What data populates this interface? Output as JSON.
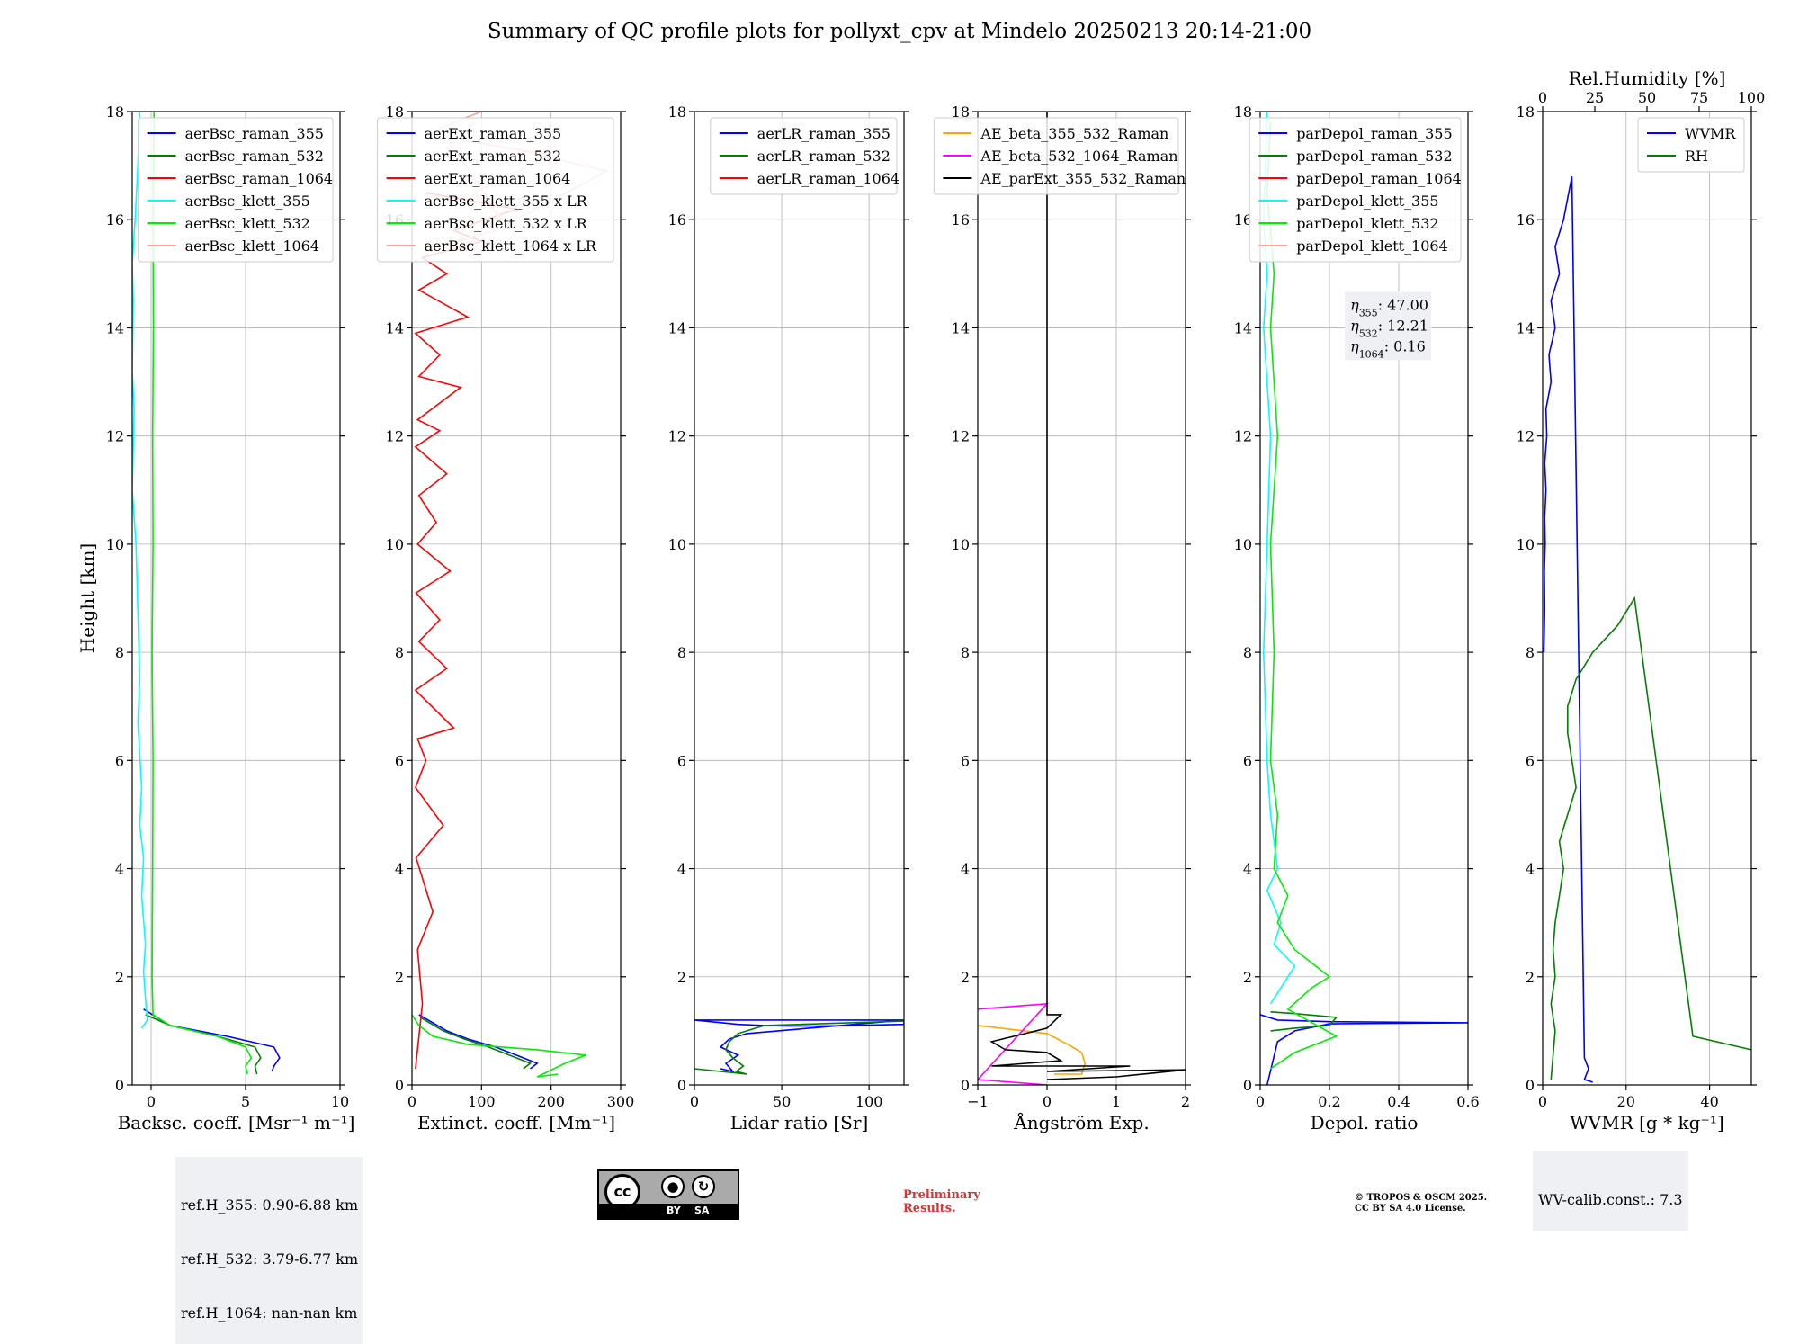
{
  "title": "Summary of QC profile plots for pollyxt_cpv at Mindelo 20250213 20:14-21:00",
  "info": {
    "ref_h_355": "ref.H_355: 0.90-6.88 km",
    "ref_h_532": "ref.H_532: 3.79-6.77 km",
    "ref_h_1064": "ref.H_1064: nan-nan km",
    "wv_calib": "WV-calib.const.: 7.3",
    "preliminary": "Preliminary\nResults.",
    "copyright": "© TROPOS & OSCM 2025.\nCC BY SA 4.0 License.",
    "cc_badge": {
      "cc": "cc",
      "by": "BY",
      "sa": "SA"
    }
  },
  "chart_data": [
    {
      "type": "line",
      "ylabel": "Height [km]",
      "xlabel": "Backsc. coeff. [Msr⁻¹ m⁻¹]",
      "xlim": [
        -1,
        10
      ],
      "ylim": [
        0,
        18
      ],
      "xticks": [
        0,
        5,
        10
      ],
      "yticks": [
        0,
        2,
        4,
        6,
        8,
        10,
        12,
        14,
        16,
        18
      ],
      "grid": true,
      "legend_position": "top-right",
      "series": [
        {
          "name": "aerBsc_raman_355",
          "color": "#0000ff",
          "x": [
            -0.4,
            1.0,
            4.0,
            6.5,
            6.8,
            6.5,
            6.4
          ],
          "y": [
            1.4,
            1.1,
            0.9,
            0.7,
            0.5,
            0.35,
            0.25
          ]
        },
        {
          "name": "aerBsc_raman_532",
          "color": "#008000",
          "x": [
            -0.3,
            1.0,
            3.5,
            5.5,
            5.8,
            5.5,
            5.6
          ],
          "y": [
            1.3,
            1.1,
            0.9,
            0.7,
            0.5,
            0.35,
            0.2
          ]
        },
        {
          "name": "aerBsc_raman_1064",
          "color": "#ff0000",
          "x": [],
          "y": []
        },
        {
          "name": "aerBsc_klett_355",
          "color": "#00ffff",
          "x": [
            -0.6,
            -0.7,
            -0.85,
            -1.0,
            -0.95,
            -1.0,
            -0.9,
            -1.0,
            -0.8,
            -0.6,
            -0.7,
            -0.5,
            -0.6,
            -0.4,
            -0.5,
            -0.3,
            -0.4,
            -0.3,
            -0.2,
            -0.5
          ],
          "y": [
            18,
            17,
            16,
            15.2,
            14.5,
            13.2,
            12.5,
            11,
            10,
            7.5,
            6.7,
            5.5,
            4.8,
            4.2,
            3.5,
            2.6,
            2.1,
            1.6,
            1.2,
            1.05
          ]
        },
        {
          "name": "aerBsc_klett_532",
          "color": "#00ee00",
          "x": [
            0.15,
            0.1,
            0.12,
            0.08,
            0.1,
            0.05,
            0.1,
            0.08,
            0.05,
            0.1,
            1.0,
            3.5,
            5.0,
            5.3,
            5.0,
            5.1
          ],
          "y": [
            18,
            16,
            14,
            12,
            10,
            8,
            6,
            4,
            2,
            1.3,
            1.1,
            0.9,
            0.7,
            0.5,
            0.35,
            0.2
          ]
        },
        {
          "name": "aerBsc_klett_1064",
          "color": "#ffa0a0",
          "x": [],
          "y": []
        }
      ]
    },
    {
      "type": "line",
      "xlabel": "Extinct. coeff. [Mm⁻¹]",
      "xlim": [
        0,
        300
      ],
      "ylim": [
        0,
        18
      ],
      "xticks": [
        0,
        100,
        200,
        300
      ],
      "yticks": [
        0,
        2,
        4,
        6,
        8,
        10,
        12,
        14,
        16,
        18
      ],
      "grid": true,
      "legend_position": "top-right",
      "series": [
        {
          "name": "aerExt_raman_355",
          "color": "#0000ff",
          "x": [
            10,
            50,
            80,
            120,
            150,
            180,
            170
          ],
          "y": [
            1.3,
            1.0,
            0.85,
            0.7,
            0.55,
            0.4,
            0.3
          ]
        },
        {
          "name": "aerExt_raman_532",
          "color": "#008000",
          "x": [
            12,
            45,
            75,
            110,
            140,
            170,
            160
          ],
          "y": [
            1.25,
            1.0,
            0.85,
            0.7,
            0.55,
            0.4,
            0.3
          ]
        },
        {
          "name": "aerExt_raman_1064",
          "color": "#ff0000",
          "x": [
            5,
            15,
            8,
            30,
            6,
            45,
            5,
            20,
            8,
            60,
            5,
            50,
            10,
            40,
            6,
            55,
            8,
            35,
            10,
            50,
            5,
            40,
            8,
            70,
            10,
            40,
            5,
            80,
            10,
            50,
            15,
            100,
            60,
            150,
            20
          ],
          "y": [
            0.3,
            1.5,
            2.5,
            3.2,
            4.2,
            4.8,
            5.5,
            6.0,
            6.4,
            6.6,
            7.3,
            7.7,
            8.2,
            8.6,
            9.1,
            9.5,
            10.0,
            10.4,
            10.9,
            11.3,
            11.8,
            12.1,
            12.3,
            12.9,
            13.1,
            13.5,
            13.9,
            14.2,
            14.7,
            15.0,
            15.3,
            15.6,
            15.8,
            16.2,
            16.5
          ]
        },
        {
          "name": "aerBsc_klett_355 x LR",
          "color": "#00ffff",
          "x": [],
          "y": []
        },
        {
          "name": "aerBsc_klett_532 x LR",
          "color": "#00ee00",
          "x": [
            0,
            10,
            30,
            80,
            180,
            250,
            220,
            180,
            210
          ],
          "y": [
            1.3,
            1.1,
            0.9,
            0.75,
            0.65,
            0.55,
            0.4,
            0.15,
            0.2
          ]
        },
        {
          "name": "aerBsc_klett_1064 x LR",
          "color": "#ffa0a0",
          "x": [
            40,
            120,
            280,
            150,
            60,
            200,
            90,
            130,
            40,
            100
          ],
          "y": [
            15.5,
            15.8,
            16.9,
            17.3,
            17.5,
            17.2,
            16.5,
            16.0,
            17.7,
            18
          ]
        }
      ]
    },
    {
      "type": "line",
      "xlabel": "Lidar ratio [Sr]",
      "xlim": [
        0,
        120
      ],
      "ylim": [
        0,
        18
      ],
      "xticks": [
        0,
        50,
        100
      ],
      "yticks": [
        0,
        2,
        4,
        6,
        8,
        10,
        12,
        14,
        16,
        18
      ],
      "grid": true,
      "legend_position": "top-right",
      "series": [
        {
          "name": "aerLR_raman_355",
          "color": "#0000ff",
          "x": [
            120,
            0,
            25,
            40,
            55,
            70,
            90,
            120,
            120,
            30,
            20,
            15,
            25,
            18,
            22,
            15
          ],
          "y": [
            1.2,
            1.2,
            1.12,
            1.1,
            1.09,
            1.09,
            1.1,
            1.12,
            1.2,
            0.95,
            0.85,
            0.7,
            0.55,
            0.4,
            0.25,
            0.3
          ]
        },
        {
          "name": "aerLR_raman_532",
          "color": "#008000",
          "x": [
            120,
            40,
            25,
            20,
            18,
            22,
            28,
            24,
            30,
            0
          ],
          "y": [
            1.18,
            1.1,
            0.95,
            0.8,
            0.65,
            0.5,
            0.35,
            0.25,
            0.2,
            0.3
          ]
        },
        {
          "name": "aerLR_raman_1064",
          "color": "#ff0000",
          "x": [],
          "y": []
        }
      ]
    },
    {
      "type": "line",
      "xlabel": "Ångström Exp.",
      "xlim": [
        -1,
        2
      ],
      "ylim": [
        0,
        18
      ],
      "xticks": [
        -1,
        0,
        1,
        2
      ],
      "yticks": [
        0,
        2,
        4,
        6,
        8,
        10,
        12,
        14,
        16,
        18
      ],
      "grid": true,
      "legend_position": "top-right",
      "series": [
        {
          "name": "AE_beta_355_532_Raman",
          "color": "#ffa500",
          "x": [
            -1,
            0.0,
            0.3,
            0.5,
            0.55,
            0.5,
            0.1
          ],
          "y": [
            1.1,
            0.95,
            0.75,
            0.6,
            0.4,
            0.2,
            0.2
          ]
        },
        {
          "name": "AE_beta_532_1064_Raman",
          "color": "#ff00ff",
          "x": [
            -1,
            0.0,
            -1,
            0.0
          ],
          "y": [
            1.4,
            1.5,
            0.1,
            0.0
          ]
        },
        {
          "name": "AE_parExt_355_532_Raman",
          "color": "#000000",
          "x": [
            0,
            0,
            0.2,
            0.0,
            -0.8,
            -0.6,
            0.0,
            0.2,
            -0.8,
            1.2,
            0.0,
            2.0,
            1.0,
            0.0
          ],
          "y": [
            18,
            1.3,
            1.3,
            1.05,
            0.8,
            0.65,
            0.6,
            0.45,
            0.35,
            0.35,
            0.25,
            0.28,
            0.15,
            0.1
          ]
        }
      ]
    },
    {
      "type": "line",
      "xlabel": "Depol. ratio",
      "xlim": [
        0,
        0.6
      ],
      "ylim": [
        0,
        18
      ],
      "xticks": [
        0.0,
        0.2,
        0.4,
        0.6
      ],
      "yticks": [
        0,
        2,
        4,
        6,
        8,
        10,
        12,
        14,
        16,
        18
      ],
      "grid": true,
      "legend_position": "top-right",
      "annotation": {
        "eta355": "47.00",
        "eta532": "12.21",
        "eta1064": "0.16"
      },
      "series": [
        {
          "name": "parDepol_raman_355",
          "color": "#0000ff",
          "x": [
            0.0,
            0.05,
            0.2,
            0.6,
            0.2,
            0.1,
            0.05,
            0.02
          ],
          "y": [
            1.3,
            1.2,
            1.17,
            1.15,
            1.13,
            1.0,
            0.8,
            0.0
          ]
        },
        {
          "name": "parDepol_raman_532",
          "color": "#008000",
          "x": [
            0.03,
            0.1,
            0.22,
            0.2,
            0.1,
            0.03
          ],
          "y": [
            1.35,
            1.32,
            1.25,
            1.1,
            1.05,
            1.0
          ]
        },
        {
          "name": "parDepol_raman_1064",
          "color": "#ff0000",
          "x": [],
          "y": []
        },
        {
          "name": "parDepol_klett_355",
          "color": "#00ffff",
          "x": [
            0.02,
            0.01,
            0.02,
            0.01,
            0.03,
            0.02,
            0.01,
            0.02,
            0.03,
            0.05,
            0.02,
            0.06,
            0.04,
            0.1,
            0.06,
            0.03
          ],
          "y": [
            18,
            16,
            15,
            14,
            12,
            10,
            8,
            6,
            5,
            4,
            3.6,
            3.0,
            2.6,
            2.2,
            1.8,
            1.5
          ]
        },
        {
          "name": "parDepol_klett_532",
          "color": "#00ee00",
          "x": [
            0.03,
            0.02,
            0.04,
            0.03,
            0.05,
            0.03,
            0.04,
            0.03,
            0.05,
            0.04,
            0.08,
            0.05,
            0.1,
            0.2,
            0.15,
            0.08,
            0.22,
            0.1,
            0.03
          ],
          "y": [
            17.8,
            16.5,
            15,
            14,
            12,
            10,
            8,
            6,
            5,
            4,
            3.5,
            3,
            2.5,
            2.0,
            1.8,
            1.4,
            0.9,
            0.6,
            0.3
          ]
        },
        {
          "name": "parDepol_klett_1064",
          "color": "#ffa0a0",
          "x": [],
          "y": []
        }
      ]
    },
    {
      "type": "line",
      "xlabel": "WVMR [g * kg⁻¹]",
      "x2label": "Rel.Humidity [%]",
      "xlim": [
        0,
        50
      ],
      "x2lim": [
        0,
        100
      ],
      "ylim": [
        0,
        18
      ],
      "xticks": [
        0,
        20,
        40
      ],
      "x2ticks": [
        0,
        25,
        50,
        75,
        100
      ],
      "yticks": [
        0,
        2,
        4,
        6,
        8,
        10,
        12,
        14,
        16,
        18
      ],
      "grid": true,
      "legend_position": "top-right",
      "series": [
        {
          "name": "WVMR",
          "color": "#0000ff",
          "x": [
            0.3,
            0.5,
            0.4,
            0.6,
            0.5,
            0.8,
            0.5,
            1.0,
            0.8,
            2.0,
            1.5,
            3.0,
            2.0,
            4.0,
            3.0,
            5.0,
            7.0,
            10.0,
            11.0,
            10.0,
            12.0
          ],
          "y": [
            8,
            8.8,
            9.5,
            10,
            10.5,
            11,
            11.5,
            12,
            12.5,
            13,
            13.5,
            14,
            14.5,
            15,
            15.5,
            16,
            16.8,
            0.5,
            0.3,
            0.1,
            0.05
          ]
        },
        {
          "name": "RH",
          "color": "#008000",
          "x": [
            2,
            3,
            2,
            3,
            2.5,
            3,
            4,
            5,
            4,
            6,
            8,
            7,
            6,
            6,
            8,
            12,
            18,
            22,
            36,
            50
          ],
          "y": [
            0.1,
            1.0,
            1.5,
            2.0,
            2.5,
            3.0,
            3.5,
            4.0,
            4.5,
            5.0,
            5.5,
            6.0,
            6.5,
            7.0,
            7.5,
            8.0,
            8.5,
            9.0,
            0.9,
            0.65
          ]
        }
      ]
    }
  ]
}
